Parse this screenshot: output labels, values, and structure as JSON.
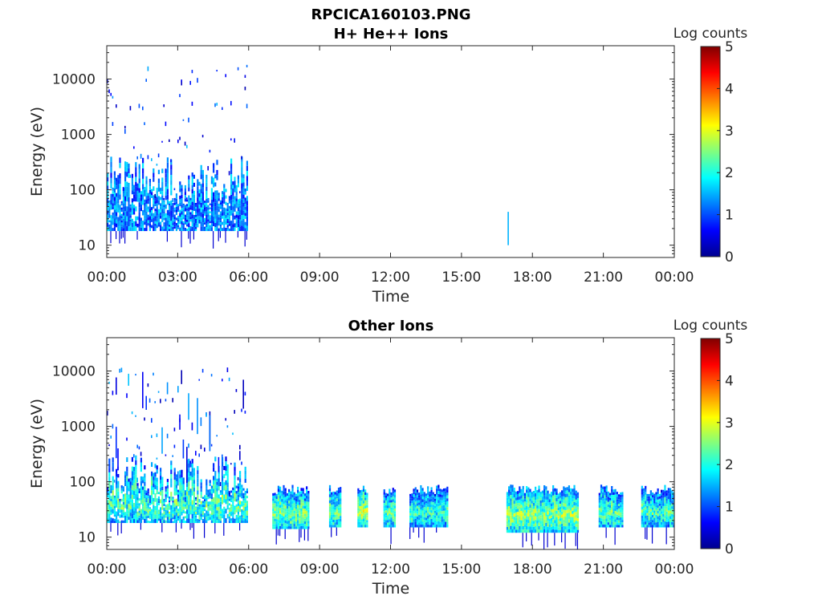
{
  "figure_title": "RPCICA160103.PNG",
  "chart_data": [
    {
      "type": "heatmap",
      "title": "H+ He++ Ions",
      "xlabel": "Time",
      "ylabel": "Energy (eV)",
      "x_ticks": [
        "00:00",
        "03:00",
        "06:00",
        "09:00",
        "12:00",
        "15:00",
        "18:00",
        "21:00",
        "00:00"
      ],
      "xlim_hours": [
        0,
        24
      ],
      "y_scale": "log",
      "y_ticks": [
        {
          "value": 10,
          "label": "10"
        },
        {
          "value": 100,
          "label": "100"
        },
        {
          "value": 1000,
          "label": "1000"
        },
        {
          "value": 10000,
          "label": "10000"
        }
      ],
      "ylim": [
        6,
        40000
      ],
      "colorbar": {
        "label": "Log counts",
        "range": [
          0,
          5
        ],
        "ticks": [
          "0",
          "1",
          "2",
          "3",
          "4",
          "5"
        ],
        "colormap": "jet"
      },
      "activity": [
        {
          "start_hour": 0.0,
          "end_hour": 5.9,
          "emin": 18,
          "emax": 400,
          "level": 1.6,
          "sparse_emax": 20000,
          "style": "sparse-spikes"
        },
        {
          "start_hour": 16.95,
          "end_hour": 17.02,
          "emin": 10,
          "emax": 40,
          "level": 1.5,
          "style": "single-spike"
        }
      ]
    },
    {
      "type": "heatmap",
      "title": "Other Ions",
      "xlabel": "Time",
      "ylabel": "Energy (eV)",
      "x_ticks": [
        "00:00",
        "03:00",
        "06:00",
        "09:00",
        "12:00",
        "15:00",
        "18:00",
        "21:00",
        "00:00"
      ],
      "xlim_hours": [
        0,
        24
      ],
      "y_scale": "log",
      "y_ticks": [
        {
          "value": 10,
          "label": "10"
        },
        {
          "value": 100,
          "label": "100"
        },
        {
          "value": 1000,
          "label": "1000"
        },
        {
          "value": 10000,
          "label": "10000"
        }
      ],
      "ylim": [
        6,
        40000
      ],
      "colorbar": {
        "label": "Log counts",
        "range": [
          0,
          5
        ],
        "ticks": [
          "0",
          "1",
          "2",
          "3",
          "4",
          "5"
        ],
        "colormap": "jet"
      },
      "activity": [
        {
          "start_hour": 0.0,
          "end_hour": 5.9,
          "emin": 18,
          "emax": 300,
          "level": 2.3,
          "sparse_emax": 12000,
          "style": "dense-spikes"
        },
        {
          "start_hour": 7.0,
          "end_hour": 8.5,
          "emin": 14,
          "emax": 85,
          "level": 2.5,
          "style": "band"
        },
        {
          "start_hour": 9.4,
          "end_hour": 9.9,
          "emin": 15,
          "emax": 85,
          "level": 2.4,
          "style": "band"
        },
        {
          "start_hour": 10.6,
          "end_hour": 11.0,
          "emin": 15,
          "emax": 85,
          "level": 2.8,
          "style": "band"
        },
        {
          "start_hour": 11.7,
          "end_hour": 12.15,
          "emin": 15,
          "emax": 85,
          "level": 2.3,
          "style": "band"
        },
        {
          "start_hour": 12.8,
          "end_hour": 14.4,
          "emin": 15,
          "emax": 85,
          "level": 2.1,
          "style": "band"
        },
        {
          "start_hour": 16.9,
          "end_hour": 19.9,
          "emin": 12,
          "emax": 85,
          "level": 2.6,
          "style": "band"
        },
        {
          "start_hour": 20.8,
          "end_hour": 21.8,
          "emin": 15,
          "emax": 85,
          "level": 2.3,
          "style": "band"
        },
        {
          "start_hour": 22.6,
          "end_hour": 24.0,
          "emin": 15,
          "emax": 85,
          "level": 2.2,
          "style": "band"
        }
      ]
    }
  ]
}
